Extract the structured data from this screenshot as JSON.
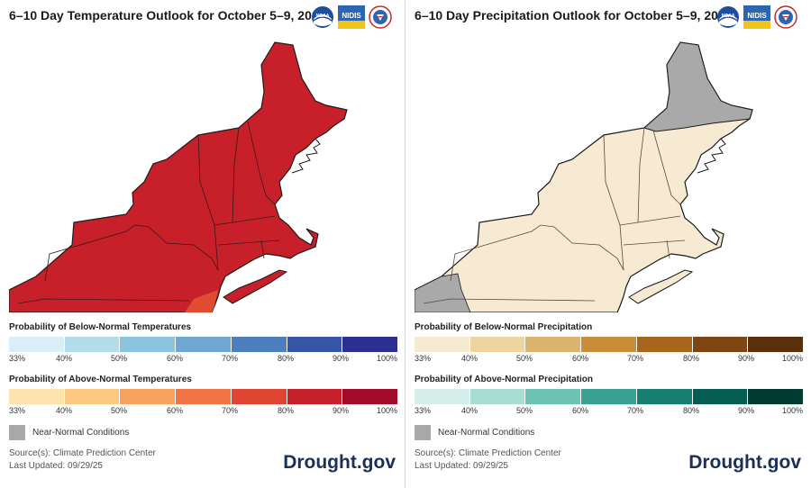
{
  "colors": {
    "temp_map_fill": "#c8202a",
    "temp_map_fill_light": "#e14b32",
    "precip_map_fill": "#f6ead2",
    "near_normal": "#a9a9a9",
    "brand": "#1b2f57"
  },
  "panels": [
    {
      "id": "temp",
      "title": "6–10 Day Temperature Outlook for October 5–9, 2025",
      "logos": [
        "noaa-logo-icon",
        "nidis-logo-icon",
        "nws-logo-icon"
      ],
      "logo_text": [
        "NOAA",
        "NIDIS"
      ],
      "legend_below_title": "Probability of Below-Normal Temperatures",
      "legend_below_colors": [
        "#daeef6",
        "#b4dcea",
        "#8cc4df",
        "#6fa6d2",
        "#4d7fbf",
        "#3655a6",
        "#2b2f8f"
      ],
      "legend_above_title": "Probability of Above-Normal Temperatures",
      "legend_above_colors": [
        "#fde4ae",
        "#fdc981",
        "#f9a25e",
        "#f27443",
        "#df4530",
        "#c8202a",
        "#a10a28"
      ],
      "ticks": [
        "33%",
        "40%",
        "50%",
        "60%",
        "70%",
        "80%",
        "90%",
        "100%"
      ],
      "near_normal_label": "Near-Normal Conditions",
      "source": "Source(s): Climate Prediction Center",
      "updated": "Last Updated: 09/29/25",
      "brand": "Drought.gov"
    },
    {
      "id": "precip",
      "title": "6–10 Day Precipitation Outlook for October 5–9, 2025",
      "logos": [
        "noaa-logo-icon",
        "nidis-logo-icon",
        "nws-logo-icon"
      ],
      "logo_text": [
        "NOAA",
        "NIDIS"
      ],
      "legend_below_title": "Probability of Below-Normal Precipitation",
      "legend_below_colors": [
        "#f6ead2",
        "#ecd59f",
        "#dcb46c",
        "#c98d39",
        "#a8651c",
        "#7f4512",
        "#5a300c"
      ],
      "legend_above_title": "Probability of Above-Normal Precipitation",
      "legend_above_colors": [
        "#d6efea",
        "#a7ddd3",
        "#6cc3b4",
        "#38a193",
        "#177f72",
        "#065d51",
        "#013a31"
      ],
      "ticks": [
        "33%",
        "40%",
        "50%",
        "60%",
        "70%",
        "80%",
        "90%",
        "100%"
      ],
      "near_normal_label": "Near-Normal Conditions",
      "source": "Source(s): Climate Prediction Center",
      "updated": "Last Updated: 09/29/25",
      "brand": "Drought.gov"
    }
  ]
}
